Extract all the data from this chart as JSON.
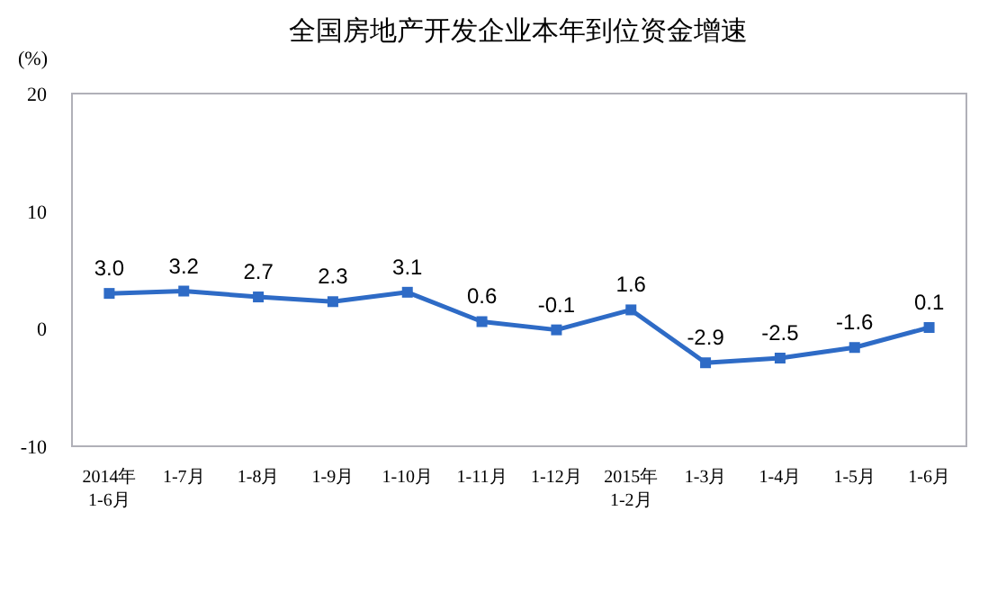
{
  "chart_data": {
    "type": "line",
    "title": "全国房地产开发企业本年到位资金增速",
    "ylabel": "(%)",
    "categories": [
      "2014年\n1-6月",
      "1-7月",
      "1-8月",
      "1-9月",
      "1-10月",
      "1-11月",
      "1-12月",
      "2015年\n1-2月",
      "1-3月",
      "1-4月",
      "1-5月",
      "1-6月"
    ],
    "series": [
      {
        "color": "#2e6bc6",
        "values": [
          3.0,
          3.2,
          2.7,
          2.3,
          3.1,
          0.6,
          -0.1,
          1.6,
          -2.9,
          -2.5,
          -1.6,
          0.1
        ],
        "value_labels": [
          "3.0",
          "3.2",
          "2.7",
          "2.3",
          "3.1",
          "0.6",
          "-0.1",
          "1.6",
          "-2.9",
          "-2.5",
          "-1.6",
          "0.1"
        ]
      }
    ],
    "ylim": [
      -10,
      20
    ],
    "yticks": [
      -10,
      0,
      10,
      20
    ],
    "marker": "square",
    "grid": false
  }
}
